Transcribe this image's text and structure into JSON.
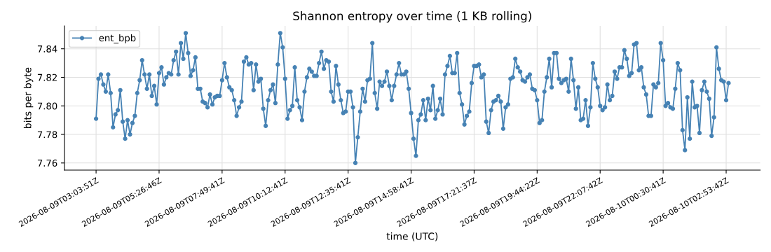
{
  "chart_data": {
    "type": "line",
    "title": "Shannon entropy over time (1 KB rolling)",
    "xlabel": "time (UTC)",
    "ylabel": "bits per byte",
    "categories": [
      "2026-08-09T03:03:51Z",
      null,
      null,
      null,
      null,
      null,
      null,
      null,
      null,
      null,
      null,
      null,
      null,
      null,
      null,
      null,
      null,
      null,
      null,
      null,
      null,
      null,
      null,
      null,
      null,
      null,
      "2026-08-09T05:26:46Z",
      null,
      null,
      null,
      null,
      null,
      null,
      null,
      null,
      null,
      null,
      null,
      null,
      null,
      null,
      null,
      null,
      null,
      null,
      null,
      null,
      null,
      null,
      null,
      null,
      null,
      "2026-08-09T07:49:41Z",
      null,
      null,
      null,
      null,
      null,
      null,
      null,
      null,
      null,
      null,
      null,
      null,
      null,
      null,
      null,
      null,
      null,
      null,
      null,
      null,
      null,
      null,
      null,
      null,
      null,
      "2026-08-09T10:12:41Z",
      null,
      null,
      null,
      null,
      null,
      null,
      null,
      null,
      null,
      null,
      null,
      null,
      null,
      null,
      null,
      null,
      null,
      null,
      null,
      null,
      null,
      null,
      null,
      null,
      null,
      "2026-08-09T12:35:41Z",
      null,
      null,
      null,
      null,
      null,
      null,
      null,
      null,
      null,
      null,
      null,
      null,
      null,
      null,
      null,
      null,
      null,
      null,
      null,
      null,
      null,
      null,
      null,
      null,
      null,
      "2026-08-09T14:58:41Z",
      null,
      null,
      null,
      null,
      null,
      null,
      null,
      null,
      null,
      null,
      null,
      null,
      null,
      null,
      null,
      null,
      null,
      null,
      null,
      null,
      null,
      null,
      null,
      null,
      null,
      "2026-08-09T17:21:37Z",
      null,
      null,
      null,
      null,
      null,
      null,
      null,
      null,
      null,
      null,
      null,
      null,
      null,
      null,
      null,
      null,
      null,
      null,
      null,
      null,
      null,
      null,
      null,
      null,
      null,
      "2026-08-09T19:44:22Z",
      null,
      null,
      null,
      null,
      null,
      null,
      null,
      null,
      null,
      null,
      null,
      null,
      null,
      null,
      null,
      null,
      null,
      null,
      null,
      null,
      null,
      null,
      null,
      null,
      null,
      "2026-08-09T22:07:42Z",
      null,
      null,
      null,
      null,
      null,
      null,
      null,
      null,
      null,
      null,
      null,
      null,
      null,
      null,
      null,
      null,
      null,
      null,
      null,
      null,
      null,
      null,
      null,
      null,
      null,
      "2026-08-10T00:30:41Z",
      null,
      null,
      null,
      null,
      null,
      null,
      null,
      null,
      null,
      null,
      null,
      null,
      null,
      null,
      null,
      null,
      null,
      null,
      null,
      null,
      null,
      null,
      null,
      null,
      null,
      "2026-08-10T02:53:42Z",
      null
    ],
    "series": [
      {
        "name": "ent_bpb",
        "color": "#4682b4",
        "values": [
          7.791,
          7.819,
          7.822,
          7.815,
          7.81,
          7.822,
          7.809,
          7.785,
          7.794,
          7.797,
          7.811,
          7.789,
          7.777,
          7.79,
          7.78,
          7.788,
          7.793,
          7.809,
          7.818,
          7.832,
          7.822,
          7.812,
          7.822,
          7.807,
          7.814,
          7.801,
          7.823,
          7.827,
          7.815,
          7.82,
          7.823,
          7.822,
          7.832,
          7.838,
          7.822,
          7.844,
          7.833,
          7.851,
          7.837,
          7.821,
          7.825,
          7.834,
          7.812,
          7.812,
          7.803,
          7.802,
          7.799,
          7.808,
          7.801,
          7.806,
          7.807,
          7.807,
          7.818,
          7.83,
          7.82,
          7.813,
          7.811,
          7.804,
          7.793,
          7.799,
          7.803,
          7.831,
          7.834,
          7.829,
          7.83,
          7.811,
          7.829,
          7.817,
          7.819,
          7.798,
          7.786,
          7.804,
          7.811,
          7.815,
          7.802,
          7.829,
          7.851,
          7.841,
          7.819,
          7.791,
          7.797,
          7.8,
          7.827,
          7.804,
          7.799,
          7.79,
          7.81,
          7.82,
          7.826,
          7.824,
          7.821,
          7.821,
          7.83,
          7.838,
          7.826,
          7.832,
          7.831,
          7.81,
          7.803,
          7.828,
          7.815,
          7.804,
          7.795,
          7.796,
          7.81,
          7.81,
          7.799,
          7.76,
          7.778,
          7.796,
          7.812,
          7.803,
          7.818,
          7.819,
          7.844,
          7.809,
          7.798,
          7.817,
          7.814,
          7.817,
          7.824,
          7.814,
          7.804,
          7.814,
          7.822,
          7.83,
          7.822,
          7.822,
          7.824,
          7.812,
          7.795,
          7.777,
          7.765,
          7.79,
          7.794,
          7.804,
          7.79,
          7.805,
          7.797,
          7.814,
          7.791,
          7.797,
          7.805,
          7.794,
          7.822,
          7.828,
          7.835,
          7.823,
          7.823,
          7.837,
          7.809,
          7.801,
          7.787,
          7.793,
          7.796,
          7.816,
          7.828,
          7.828,
          7.829,
          7.82,
          7.822,
          7.789,
          7.781,
          7.797,
          7.803,
          7.804,
          7.807,
          7.803,
          7.784,
          7.799,
          7.801,
          7.819,
          7.82,
          7.833,
          7.827,
          7.824,
          7.818,
          7.817,
          7.82,
          7.822,
          7.812,
          7.811,
          7.804,
          7.788,
          7.79,
          7.81,
          7.82,
          7.833,
          7.813,
          7.837,
          7.837,
          7.819,
          7.816,
          7.818,
          7.819,
          7.81,
          7.833,
          7.818,
          7.798,
          7.813,
          7.79,
          7.791,
          7.804,
          7.786,
          7.799,
          7.83,
          7.819,
          7.813,
          7.8,
          7.797,
          7.799,
          7.815,
          7.804,
          7.807,
          7.824,
          7.819,
          7.827,
          7.827,
          7.839,
          7.833,
          7.821,
          7.823,
          7.843,
          7.844,
          7.825,
          7.827,
          7.813,
          7.808,
          7.793,
          7.793,
          7.815,
          7.813,
          7.816,
          7.844,
          7.832,
          7.8,
          7.802,
          7.799,
          7.798,
          7.812,
          7.83,
          7.825,
          7.783,
          7.769,
          7.806,
          7.777,
          7.817,
          7.799,
          7.8,
          7.781,
          7.811,
          7.817,
          7.81,
          7.805,
          7.779,
          7.792,
          7.841,
          7.826,
          7.818,
          7.817,
          7.804,
          7.816
        ]
      }
    ],
    "ylim": [
      7.755,
      7.856
    ],
    "yticks": [
      {
        "value": 7.76,
        "label": "7.76"
      },
      {
        "value": 7.78,
        "label": "7.78"
      },
      {
        "value": 7.8,
        "label": "7.80"
      },
      {
        "value": 7.82,
        "label": "7.82"
      },
      {
        "value": 7.84,
        "label": "7.84"
      }
    ],
    "grid": true,
    "legend": "top left",
    "marker": "circle",
    "line_style": "solid"
  }
}
